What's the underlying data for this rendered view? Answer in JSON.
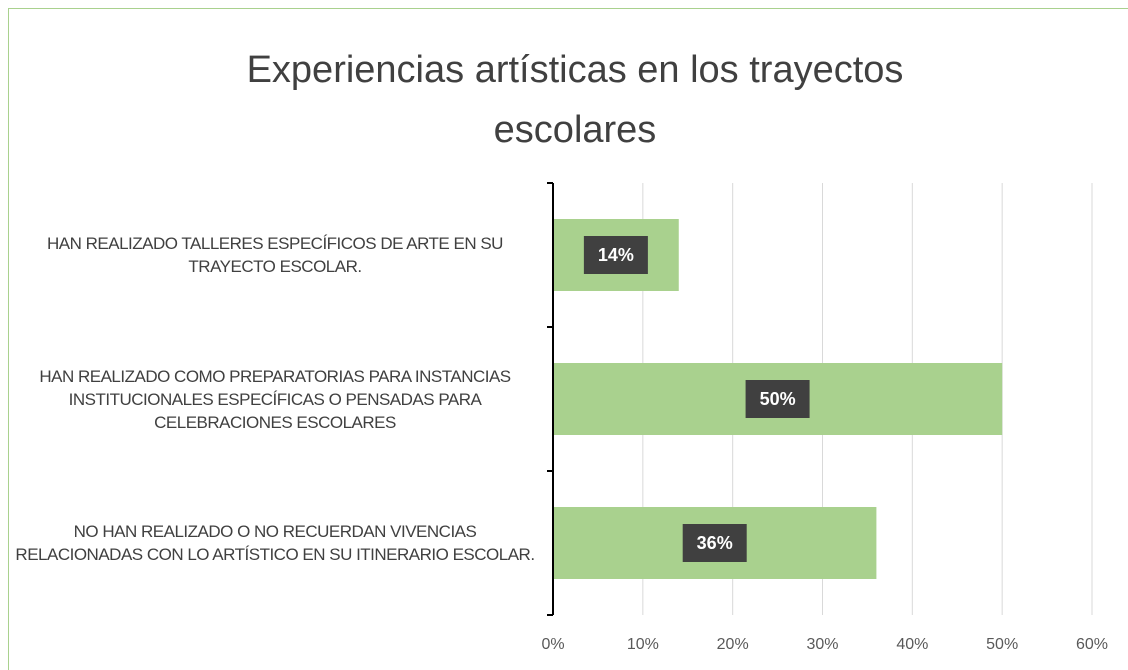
{
  "chart_data": {
    "type": "barh",
    "title": "Experiencias artísticas en los trayectos escolares",
    "categories": [
      "HAN REALIZADO TALLERES ESPECÍFICOS DE ARTE EN SU TRAYECTO ESCOLAR.",
      "HAN REALIZADO COMO PREPARATORIAS PARA INSTANCIAS INSTITUCIONALES ESPECÍFICAS O PENSADAS PARA CELEBRACIONES ESCOLARES",
      "NO HAN REALIZADO O NO RECUERDAN VIVENCIAS RELACIONADAS CON LO ARTÍSTICO EN SU ITINERARIO ESCOLAR."
    ],
    "values": [
      14,
      50,
      36
    ],
    "value_labels": [
      "14%",
      "50%",
      "36%"
    ],
    "color": "#a9d18e",
    "xlim": [
      0,
      60
    ],
    "xticks": [
      {
        "value": 0,
        "label": "0%"
      },
      {
        "value": 10,
        "label": "10%"
      },
      {
        "value": 20,
        "label": "20%"
      },
      {
        "value": 30,
        "label": "30%"
      },
      {
        "value": 40,
        "label": "40%"
      },
      {
        "value": 50,
        "label": "50%"
      },
      {
        "value": 60,
        "label": "60%"
      }
    ],
    "grid": true
  }
}
